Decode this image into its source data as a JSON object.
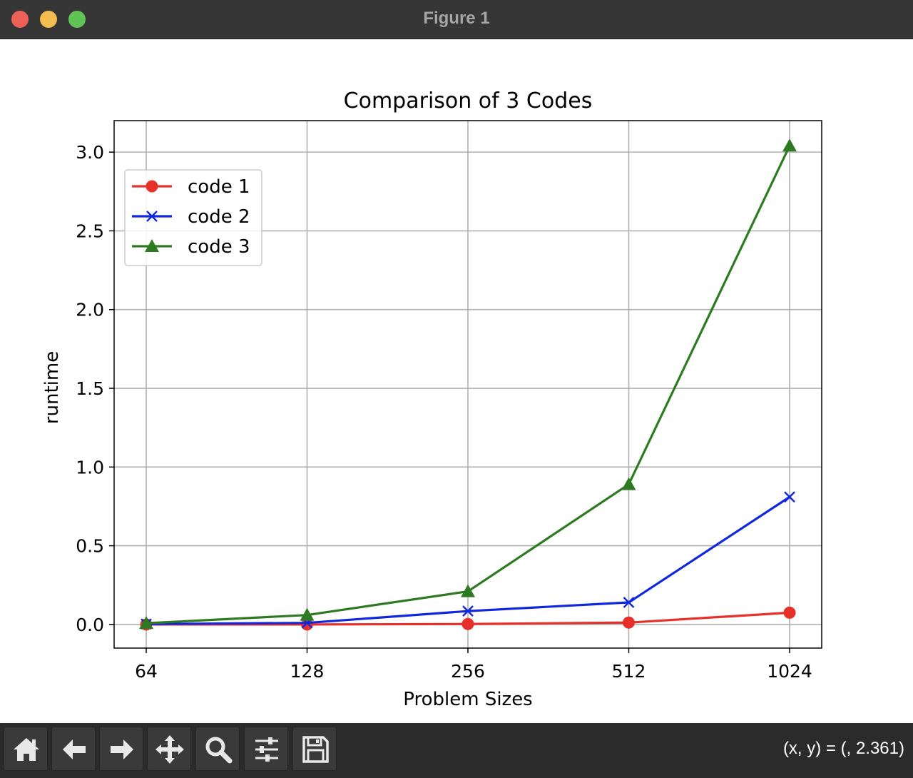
{
  "window": {
    "title": "Figure 1",
    "controls": [
      "close",
      "minimize",
      "maximize"
    ]
  },
  "toolbar": {
    "buttons": [
      {
        "name": "home-icon",
        "label": "Home"
      },
      {
        "name": "back-icon",
        "label": "Back"
      },
      {
        "name": "forward-icon",
        "label": "Forward"
      },
      {
        "name": "pan-icon",
        "label": "Pan"
      },
      {
        "name": "zoom-icon",
        "label": "Zoom"
      },
      {
        "name": "subplots-icon",
        "label": "Configure subplots"
      },
      {
        "name": "save-icon",
        "label": "Save"
      }
    ],
    "coords_text": "(x, y) = (, 2.361)"
  },
  "chart_data": {
    "type": "line",
    "title": "Comparison of 3 Codes",
    "xlabel": "Problem Sizes",
    "ylabel": "runtime",
    "categories": [
      "64",
      "128",
      "256",
      "512",
      "1024"
    ],
    "ylim": [
      -0.15,
      3.2
    ],
    "yticks": [
      0.0,
      0.5,
      1.0,
      1.5,
      2.0,
      2.5,
      3.0
    ],
    "ytick_labels": [
      "0.0",
      "0.5",
      "1.0",
      "1.5",
      "2.0",
      "2.5",
      "3.0"
    ],
    "grid": true,
    "legend_position": "upper left",
    "series": [
      {
        "name": "code 1",
        "color": "#e8302a",
        "marker": "circle",
        "values": [
          0.0,
          0.0,
          0.003,
          0.012,
          0.075
        ]
      },
      {
        "name": "code 2",
        "color": "#1027e0",
        "marker": "x",
        "values": [
          0.003,
          0.01,
          0.085,
          0.14,
          0.81
        ]
      },
      {
        "name": "code 3",
        "color": "#2e7a22",
        "marker": "triangle",
        "values": [
          0.008,
          0.06,
          0.21,
          0.89,
          3.04
        ]
      }
    ]
  }
}
